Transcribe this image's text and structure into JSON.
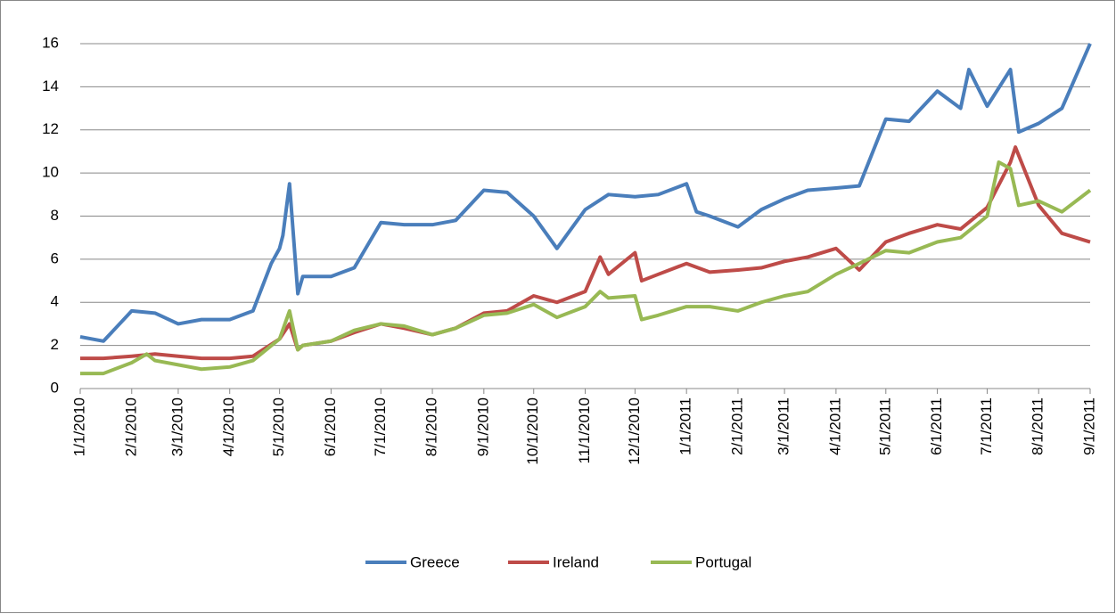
{
  "chart_data": {
    "type": "line",
    "xlim": [
      "1/1/2010",
      "9/1/2011"
    ],
    "xticks": [
      "1/1/2010",
      "2/1/2010",
      "3/1/2010",
      "4/1/2010",
      "5/1/2010",
      "6/1/2010",
      "7/1/2010",
      "8/1/2010",
      "9/1/2010",
      "10/1/2010",
      "11/1/2010",
      "12/1/2010",
      "1/1/2011",
      "2/1/2011",
      "3/1/2011",
      "4/1/2011",
      "5/1/2011",
      "6/1/2011",
      "7/1/2011",
      "8/1/2011",
      "9/1/2011"
    ],
    "ylim": [
      0,
      16
    ],
    "yticks": [
      0,
      2,
      4,
      6,
      8,
      10,
      12,
      14,
      16
    ],
    "grid": true,
    "legend": "bottom",
    "series": [
      {
        "name": "Greece",
        "color": "#4a7ebb",
        "x": [
          "1/1/2010",
          "1/15/2010",
          "2/1/2010",
          "2/15/2010",
          "3/1/2010",
          "3/15/2010",
          "4/1/2010",
          "4/15/2010",
          "4/26/2010",
          "5/1/2010",
          "5/3/2010",
          "5/7/2010",
          "5/12/2010",
          "5/15/2010",
          "6/1/2010",
          "6/15/2010",
          "7/1/2010",
          "7/15/2010",
          "8/1/2010",
          "8/15/2010",
          "9/1/2010",
          "9/15/2010",
          "10/1/2010",
          "10/15/2010",
          "11/1/2010",
          "11/15/2010",
          "12/1/2010",
          "12/15/2010",
          "1/1/2011",
          "1/7/2011",
          "1/15/2011",
          "2/1/2011",
          "2/15/2011",
          "3/1/2011",
          "3/15/2011",
          "4/1/2011",
          "4/15/2011",
          "5/1/2011",
          "5/15/2011",
          "6/1/2011",
          "6/15/2011",
          "6/20/2011",
          "7/1/2011",
          "7/15/2011",
          "7/20/2011",
          "8/1/2011",
          "8/15/2011",
          "9/1/2011"
        ],
        "values": [
          2.4,
          2.2,
          3.6,
          3.5,
          3.0,
          3.2,
          3.2,
          3.6,
          5.8,
          6.5,
          7.1,
          9.5,
          4.4,
          5.2,
          5.2,
          5.6,
          7.7,
          7.6,
          7.6,
          7.8,
          9.2,
          9.1,
          8.0,
          6.5,
          8.3,
          9.0,
          8.9,
          9.0,
          9.5,
          8.2,
          8.0,
          7.5,
          8.3,
          8.8,
          9.2,
          9.3,
          9.4,
          12.5,
          12.4,
          13.8,
          13.0,
          14.8,
          13.1,
          14.8,
          11.9,
          12.3,
          13.0,
          16.0
        ]
      },
      {
        "name": "Ireland",
        "color": "#be4b48",
        "x": [
          "1/1/2010",
          "1/15/2010",
          "2/1/2010",
          "2/15/2010",
          "3/1/2010",
          "3/15/2010",
          "4/1/2010",
          "4/15/2010",
          "5/1/2010",
          "5/7/2010",
          "5/12/2010",
          "5/15/2010",
          "6/1/2010",
          "6/15/2010",
          "7/1/2010",
          "7/15/2010",
          "8/1/2010",
          "8/15/2010",
          "9/1/2010",
          "9/15/2010",
          "10/1/2010",
          "10/15/2010",
          "11/1/2010",
          "11/10/2010",
          "11/15/2010",
          "12/1/2010",
          "12/5/2010",
          "12/15/2010",
          "1/1/2011",
          "1/15/2011",
          "2/1/2011",
          "2/15/2011",
          "3/1/2011",
          "3/15/2011",
          "4/1/2011",
          "4/15/2011",
          "5/1/2011",
          "5/15/2011",
          "6/1/2011",
          "6/15/2011",
          "7/1/2011",
          "7/15/2011",
          "7/18/2011",
          "8/1/2011",
          "8/15/2011",
          "9/1/2011"
        ],
        "values": [
          1.4,
          1.4,
          1.5,
          1.6,
          1.5,
          1.4,
          1.4,
          1.5,
          2.3,
          3.0,
          1.8,
          2.0,
          2.2,
          2.6,
          3.0,
          2.8,
          2.5,
          2.8,
          3.5,
          3.6,
          4.3,
          4.0,
          4.5,
          6.1,
          5.3,
          6.3,
          5.0,
          5.3,
          5.8,
          5.4,
          5.5,
          5.6,
          5.9,
          6.1,
          6.5,
          5.5,
          6.8,
          7.2,
          7.6,
          7.4,
          8.4,
          10.5,
          11.2,
          8.5,
          7.2,
          6.8
        ]
      },
      {
        "name": "Portugal",
        "color": "#98b954",
        "x": [
          "1/1/2010",
          "1/15/2010",
          "2/1/2010",
          "2/10/2010",
          "2/15/2010",
          "3/1/2010",
          "3/15/2010",
          "4/1/2010",
          "4/15/2010",
          "5/1/2010",
          "5/7/2010",
          "5/12/2010",
          "5/15/2010",
          "6/1/2010",
          "6/15/2010",
          "7/1/2010",
          "7/15/2010",
          "8/1/2010",
          "8/15/2010",
          "9/1/2010",
          "9/15/2010",
          "10/1/2010",
          "10/15/2010",
          "11/1/2010",
          "11/10/2010",
          "11/15/2010",
          "12/1/2010",
          "12/5/2010",
          "12/15/2010",
          "1/1/2011",
          "1/15/2011",
          "2/1/2011",
          "2/15/2011",
          "3/1/2011",
          "3/15/2011",
          "4/1/2011",
          "4/15/2011",
          "5/1/2011",
          "5/15/2011",
          "6/1/2011",
          "6/15/2011",
          "7/1/2011",
          "7/8/2011",
          "7/15/2011",
          "7/20/2011",
          "8/1/2011",
          "8/15/2011",
          "9/1/2011"
        ],
        "values": [
          0.7,
          0.7,
          1.2,
          1.6,
          1.3,
          1.1,
          0.9,
          1.0,
          1.3,
          2.3,
          3.6,
          1.8,
          2.0,
          2.2,
          2.7,
          3.0,
          2.9,
          2.5,
          2.8,
          3.4,
          3.5,
          3.9,
          3.3,
          3.8,
          4.5,
          4.2,
          4.3,
          3.2,
          3.4,
          3.8,
          3.8,
          3.6,
          4.0,
          4.3,
          4.5,
          5.3,
          5.8,
          6.4,
          6.3,
          6.8,
          7.0,
          8.0,
          10.5,
          10.2,
          8.5,
          8.7,
          8.2,
          9.2
        ]
      }
    ]
  }
}
